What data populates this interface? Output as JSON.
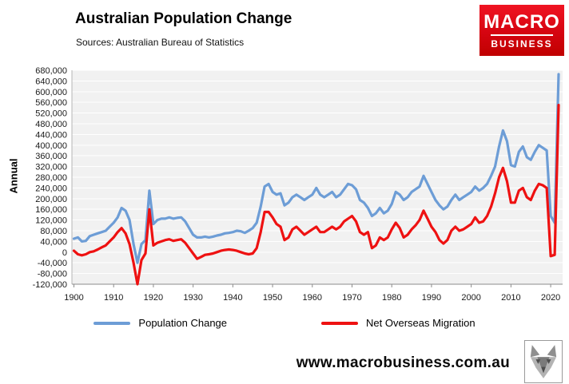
{
  "header": {
    "title": "Australian Population Change",
    "subtitle": "Sources: Australian Bureau of Statistics"
  },
  "logo": {
    "line1": "MACRO",
    "line2": "BUSINESS",
    "brand_red": "#e30613"
  },
  "legend": [
    {
      "label": "Population Change",
      "color": "#6d9dd6"
    },
    {
      "label": "Net Overseas Migration",
      "color": "#ee1111"
    }
  ],
  "footer": {
    "url": "www.macrobusiness.com.au"
  },
  "chart_data": {
    "type": "line",
    "title": "Australian Population Change",
    "xlabel": "",
    "ylabel": "Annual",
    "ylim": [
      -120000,
      680000
    ],
    "ytick_step": 40000,
    "xlim": [
      1899.5,
      2023
    ],
    "xticks": [
      1900,
      1910,
      1920,
      1930,
      1940,
      1950,
      1960,
      1970,
      1980,
      1990,
      2000,
      2010,
      2020
    ],
    "grid": "horizontal-white-on-gray",
    "plot_bg": "#f1f1f1",
    "legend_position": "bottom",
    "x": [
      1900,
      1901,
      1902,
      1903,
      1904,
      1905,
      1906,
      1907,
      1908,
      1909,
      1910,
      1911,
      1912,
      1913,
      1914,
      1915,
      1916,
      1917,
      1918,
      1919,
      1920,
      1921,
      1922,
      1923,
      1924,
      1925,
      1926,
      1927,
      1928,
      1929,
      1930,
      1931,
      1932,
      1933,
      1934,
      1935,
      1936,
      1937,
      1938,
      1939,
      1940,
      1941,
      1942,
      1943,
      1944,
      1945,
      1946,
      1947,
      1948,
      1949,
      1950,
      1951,
      1952,
      1953,
      1954,
      1955,
      1956,
      1957,
      1958,
      1959,
      1960,
      1961,
      1962,
      1963,
      1964,
      1965,
      1966,
      1967,
      1968,
      1969,
      1970,
      1971,
      1972,
      1973,
      1974,
      1975,
      1976,
      1977,
      1978,
      1979,
      1980,
      1981,
      1982,
      1983,
      1984,
      1985,
      1986,
      1987,
      1988,
      1989,
      1990,
      1991,
      1992,
      1993,
      1994,
      1995,
      1996,
      1997,
      1998,
      1999,
      2000,
      2001,
      2002,
      2003,
      2004,
      2005,
      2006,
      2007,
      2008,
      2009,
      2010,
      2011,
      2012,
      2013,
      2014,
      2015,
      2016,
      2017,
      2018,
      2019,
      2020,
      2021,
      2022
    ],
    "series": [
      {
        "name": "Population Change",
        "color": "#6d9dd6",
        "values": [
          50000,
          55000,
          40000,
          42000,
          60000,
          65000,
          70000,
          75000,
          80000,
          95000,
          110000,
          130000,
          165000,
          155000,
          120000,
          30000,
          -40000,
          30000,
          45000,
          230000,
          105000,
          120000,
          125000,
          125000,
          130000,
          125000,
          128000,
          130000,
          115000,
          90000,
          65000,
          55000,
          55000,
          58000,
          55000,
          58000,
          62000,
          65000,
          70000,
          72000,
          75000,
          80000,
          78000,
          72000,
          80000,
          90000,
          110000,
          170000,
          245000,
          255000,
          225000,
          215000,
          220000,
          175000,
          185000,
          205000,
          215000,
          205000,
          195000,
          205000,
          215000,
          240000,
          215000,
          205000,
          215000,
          225000,
          205000,
          215000,
          235000,
          255000,
          250000,
          235000,
          195000,
          185000,
          165000,
          135000,
          145000,
          165000,
          145000,
          155000,
          180000,
          225000,
          215000,
          195000,
          205000,
          225000,
          235000,
          245000,
          285000,
          255000,
          225000,
          195000,
          175000,
          160000,
          170000,
          195000,
          215000,
          195000,
          205000,
          215000,
          225000,
          245000,
          230000,
          240000,
          255000,
          285000,
          320000,
          395000,
          455000,
          415000,
          325000,
          320000,
          375000,
          395000,
          355000,
          345000,
          375000,
          400000,
          390000,
          380000,
          135000,
          110000,
          665000
        ]
      },
      {
        "name": "Net Overseas Migration",
        "color": "#ee1111",
        "values": [
          5000,
          -8000,
          -12000,
          -8000,
          0,
          3000,
          10000,
          18000,
          25000,
          40000,
          55000,
          75000,
          90000,
          70000,
          30000,
          -40000,
          -120000,
          -30000,
          -5000,
          160000,
          25000,
          35000,
          40000,
          45000,
          48000,
          42000,
          45000,
          48000,
          35000,
          15000,
          -5000,
          -25000,
          -18000,
          -10000,
          -8000,
          -5000,
          0,
          5000,
          8000,
          10000,
          8000,
          5000,
          0,
          -5000,
          -8000,
          -5000,
          15000,
          75000,
          150000,
          150000,
          130000,
          105000,
          95000,
          45000,
          55000,
          85000,
          95000,
          80000,
          65000,
          75000,
          85000,
          95000,
          75000,
          75000,
          85000,
          95000,
          85000,
          95000,
          115000,
          125000,
          135000,
          115000,
          75000,
          65000,
          75000,
          15000,
          25000,
          55000,
          45000,
          55000,
          85000,
          110000,
          90000,
          55000,
          65000,
          85000,
          100000,
          120000,
          155000,
          125000,
          95000,
          75000,
          45000,
          32000,
          45000,
          80000,
          95000,
          80000,
          85000,
          95000,
          105000,
          130000,
          110000,
          115000,
          135000,
          170000,
          220000,
          280000,
          315000,
          265000,
          185000,
          185000,
          230000,
          240000,
          205000,
          195000,
          230000,
          255000,
          250000,
          240000,
          -15000,
          -10000,
          550000
        ]
      }
    ]
  }
}
